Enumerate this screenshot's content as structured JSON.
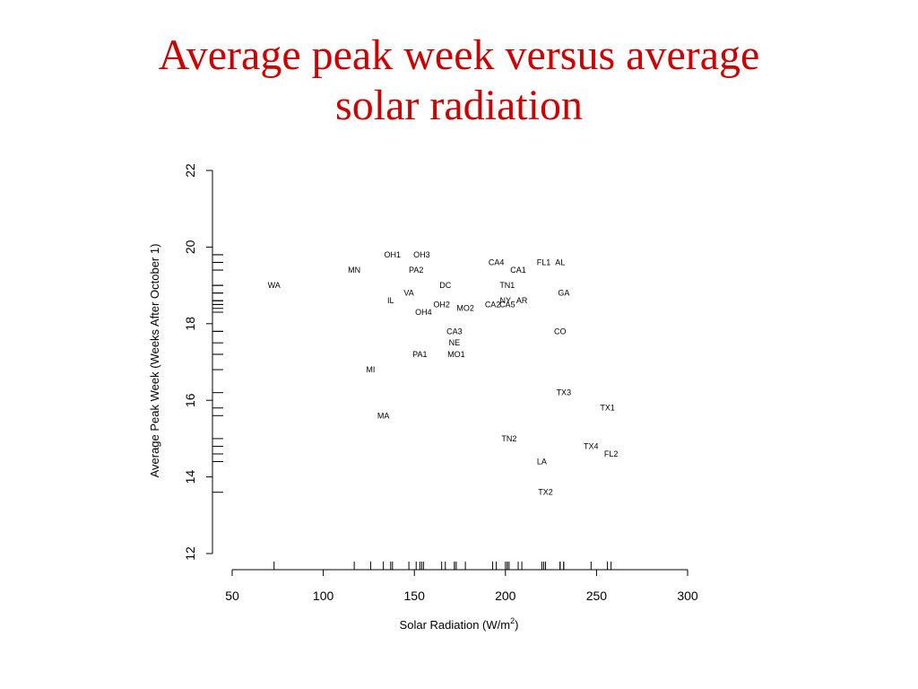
{
  "slide": {
    "title_line1": "Average peak week versus average",
    "title_line2": "solar radiation"
  },
  "chart_data": {
    "type": "scatter",
    "xlabel": "Solar Radiation (W/m2)",
    "ylabel": "Average Peak Week (Weeks After October 1)",
    "xlim": [
      50,
      300
    ],
    "ylim": [
      12,
      22
    ],
    "xticks": [
      50,
      100,
      150,
      200,
      250,
      300
    ],
    "yticks": [
      12,
      14,
      16,
      18,
      20,
      22
    ],
    "grid": false,
    "legend": "none",
    "marker": "text-label",
    "points": [
      {
        "label": "WA",
        "x": 73,
        "y": 19.0
      },
      {
        "label": "MN",
        "x": 117,
        "y": 19.4
      },
      {
        "label": "MI",
        "x": 126,
        "y": 16.8
      },
      {
        "label": "MA",
        "x": 133,
        "y": 15.6
      },
      {
        "label": "IL",
        "x": 137,
        "y": 18.6
      },
      {
        "label": "OH1",
        "x": 138,
        "y": 19.8
      },
      {
        "label": "VA",
        "x": 147,
        "y": 18.8
      },
      {
        "label": "PA2",
        "x": 151,
        "y": 19.4
      },
      {
        "label": "PA1",
        "x": 153,
        "y": 17.2
      },
      {
        "label": "OH3",
        "x": 154,
        "y": 19.8
      },
      {
        "label": "OH4",
        "x": 155,
        "y": 18.3
      },
      {
        "label": "OH2",
        "x": 165,
        "y": 18.5
      },
      {
        "label": "DC",
        "x": 167,
        "y": 19.0
      },
      {
        "label": "CA3",
        "x": 172,
        "y": 17.8
      },
      {
        "label": "NE",
        "x": 172,
        "y": 17.5
      },
      {
        "label": "MO1",
        "x": 173,
        "y": 17.2
      },
      {
        "label": "MO2",
        "x": 178,
        "y": 18.4
      },
      {
        "label": "CA2",
        "x": 193,
        "y": 18.5
      },
      {
        "label": "CA4",
        "x": 195,
        "y": 19.6
      },
      {
        "label": "TN2",
        "x": 202,
        "y": 15.0
      },
      {
        "label": "TN1",
        "x": 201,
        "y": 19.0
      },
      {
        "label": "NY",
        "x": 200,
        "y": 18.6
      },
      {
        "label": "CA5",
        "x": 201,
        "y": 18.5
      },
      {
        "label": "CA1",
        "x": 207,
        "y": 19.4
      },
      {
        "label": "AR",
        "x": 209,
        "y": 18.6
      },
      {
        "label": "LA",
        "x": 220,
        "y": 14.4
      },
      {
        "label": "TX2",
        "x": 222,
        "y": 13.6
      },
      {
        "label": "FL1",
        "x": 221,
        "y": 19.6
      },
      {
        "label": "AL",
        "x": 230,
        "y": 19.6
      },
      {
        "label": "GA",
        "x": 232,
        "y": 18.8
      },
      {
        "label": "CO",
        "x": 230,
        "y": 17.8
      },
      {
        "label": "TX3",
        "x": 232,
        "y": 16.2
      },
      {
        "label": "TX4",
        "x": 247,
        "y": 14.8
      },
      {
        "label": "TX1",
        "x": 256,
        "y": 15.8
      },
      {
        "label": "FL2",
        "x": 258,
        "y": 14.6
      }
    ]
  }
}
